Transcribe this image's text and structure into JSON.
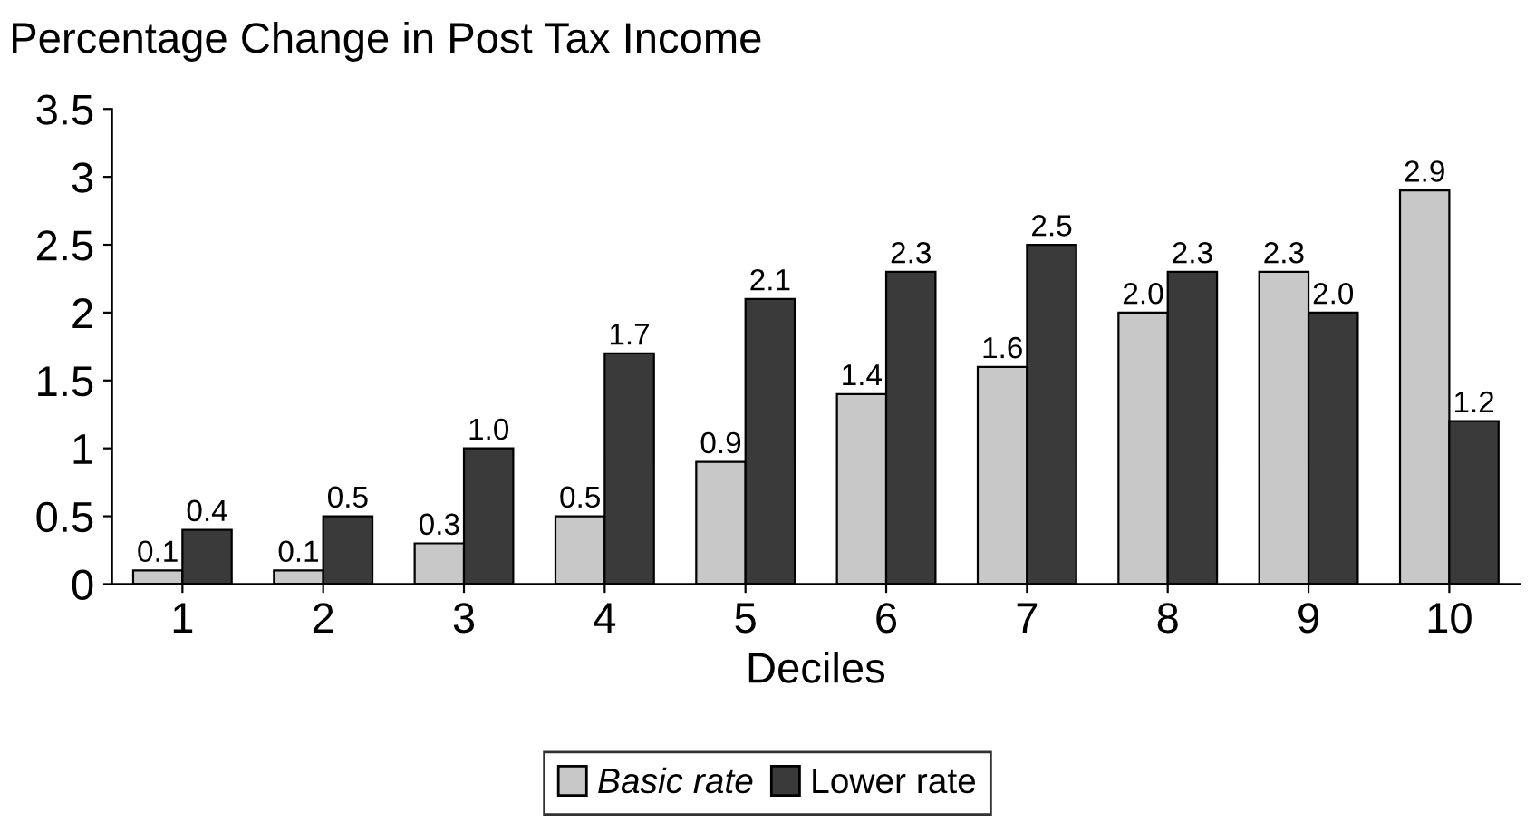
{
  "chart_data": {
    "type": "bar",
    "title": "Percentage Change in Post Tax Income",
    "xlabel": "Deciles",
    "categories": [
      "1",
      "2",
      "3",
      "4",
      "5",
      "6",
      "7",
      "8",
      "9",
      "10"
    ],
    "series": [
      {
        "name": "Basic rate",
        "color": "#c8c8c8",
        "values": [
          0.1,
          0.1,
          0.3,
          0.5,
          0.9,
          1.4,
          1.6,
          2.0,
          2.3,
          2.9
        ],
        "value_labels": [
          "0.1",
          "0.1",
          "0.3",
          "0.5",
          "0.9",
          "1.4",
          "1.6",
          "2.0",
          "2.3",
          "2.9"
        ]
      },
      {
        "name": "Lower rate",
        "color": "#3a3a3a",
        "values": [
          0.4,
          0.5,
          1.0,
          1.7,
          2.1,
          2.3,
          2.5,
          2.3,
          2.0,
          1.2
        ],
        "value_labels": [
          "0.4",
          "0.5",
          "1.0",
          "1.7",
          "2.1",
          "2.3",
          "2.5",
          "2.3",
          "2.0",
          "1.2"
        ]
      }
    ],
    "ylim": [
      0,
      3.5
    ],
    "yticks": [
      0,
      0.5,
      1,
      1.5,
      2,
      2.5,
      3,
      3.5
    ],
    "grid": false,
    "legend": "bottom"
  }
}
